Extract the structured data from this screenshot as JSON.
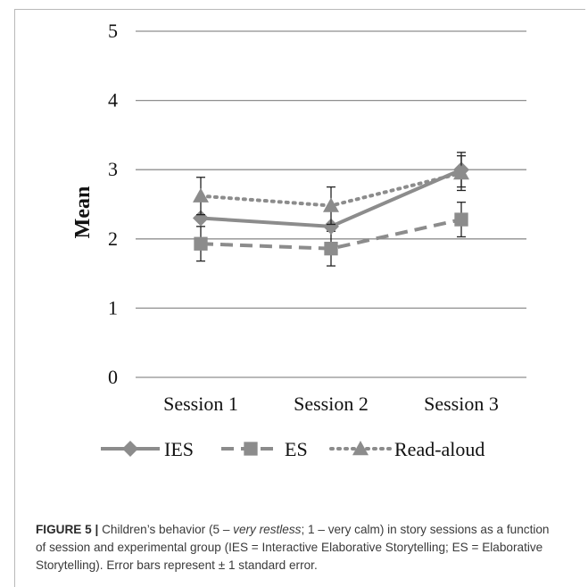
{
  "chart_data": {
    "type": "line",
    "title": "",
    "xlabel": "",
    "ylabel": "Mean",
    "ylim": [
      0,
      5
    ],
    "yticks": [
      "0",
      "1",
      "2",
      "3",
      "4",
      "5"
    ],
    "categories": [
      "Session 1",
      "Session 2",
      "Session 3"
    ],
    "grid": true,
    "legend_position": "bottom",
    "series": [
      {
        "name": "IES",
        "values": [
          2.3,
          2.18,
          3.0
        ],
        "errors": [
          0.0,
          0.0,
          0.25
        ],
        "marker": "diamond",
        "line_style": "solid",
        "color": "#8c8c8c"
      },
      {
        "name": "ES",
        "values": [
          1.93,
          1.86,
          2.28
        ],
        "errors": [
          0.25,
          0.25,
          0.25
        ],
        "marker": "square",
        "line_style": "dashed",
        "color": "#8c8c8c"
      },
      {
        "name": "Read-aloud",
        "values": [
          2.62,
          2.48,
          2.95
        ],
        "errors": [
          0.27,
          0.27,
          0.25
        ],
        "marker": "triangle",
        "line_style": "dotted",
        "color": "#8c8c8c"
      }
    ]
  },
  "caption": {
    "label": "FIGURE 5",
    "separator": "|",
    "part1": " Children’s behavior (5 – ",
    "italic": "very restless",
    "part2": "; 1 – very calm) in story sessions as a function of session and experimental group (IES = Interactive Elaborative Storytelling; ES = Elaborative Storytelling). Error bars represent ± 1 standard error."
  }
}
